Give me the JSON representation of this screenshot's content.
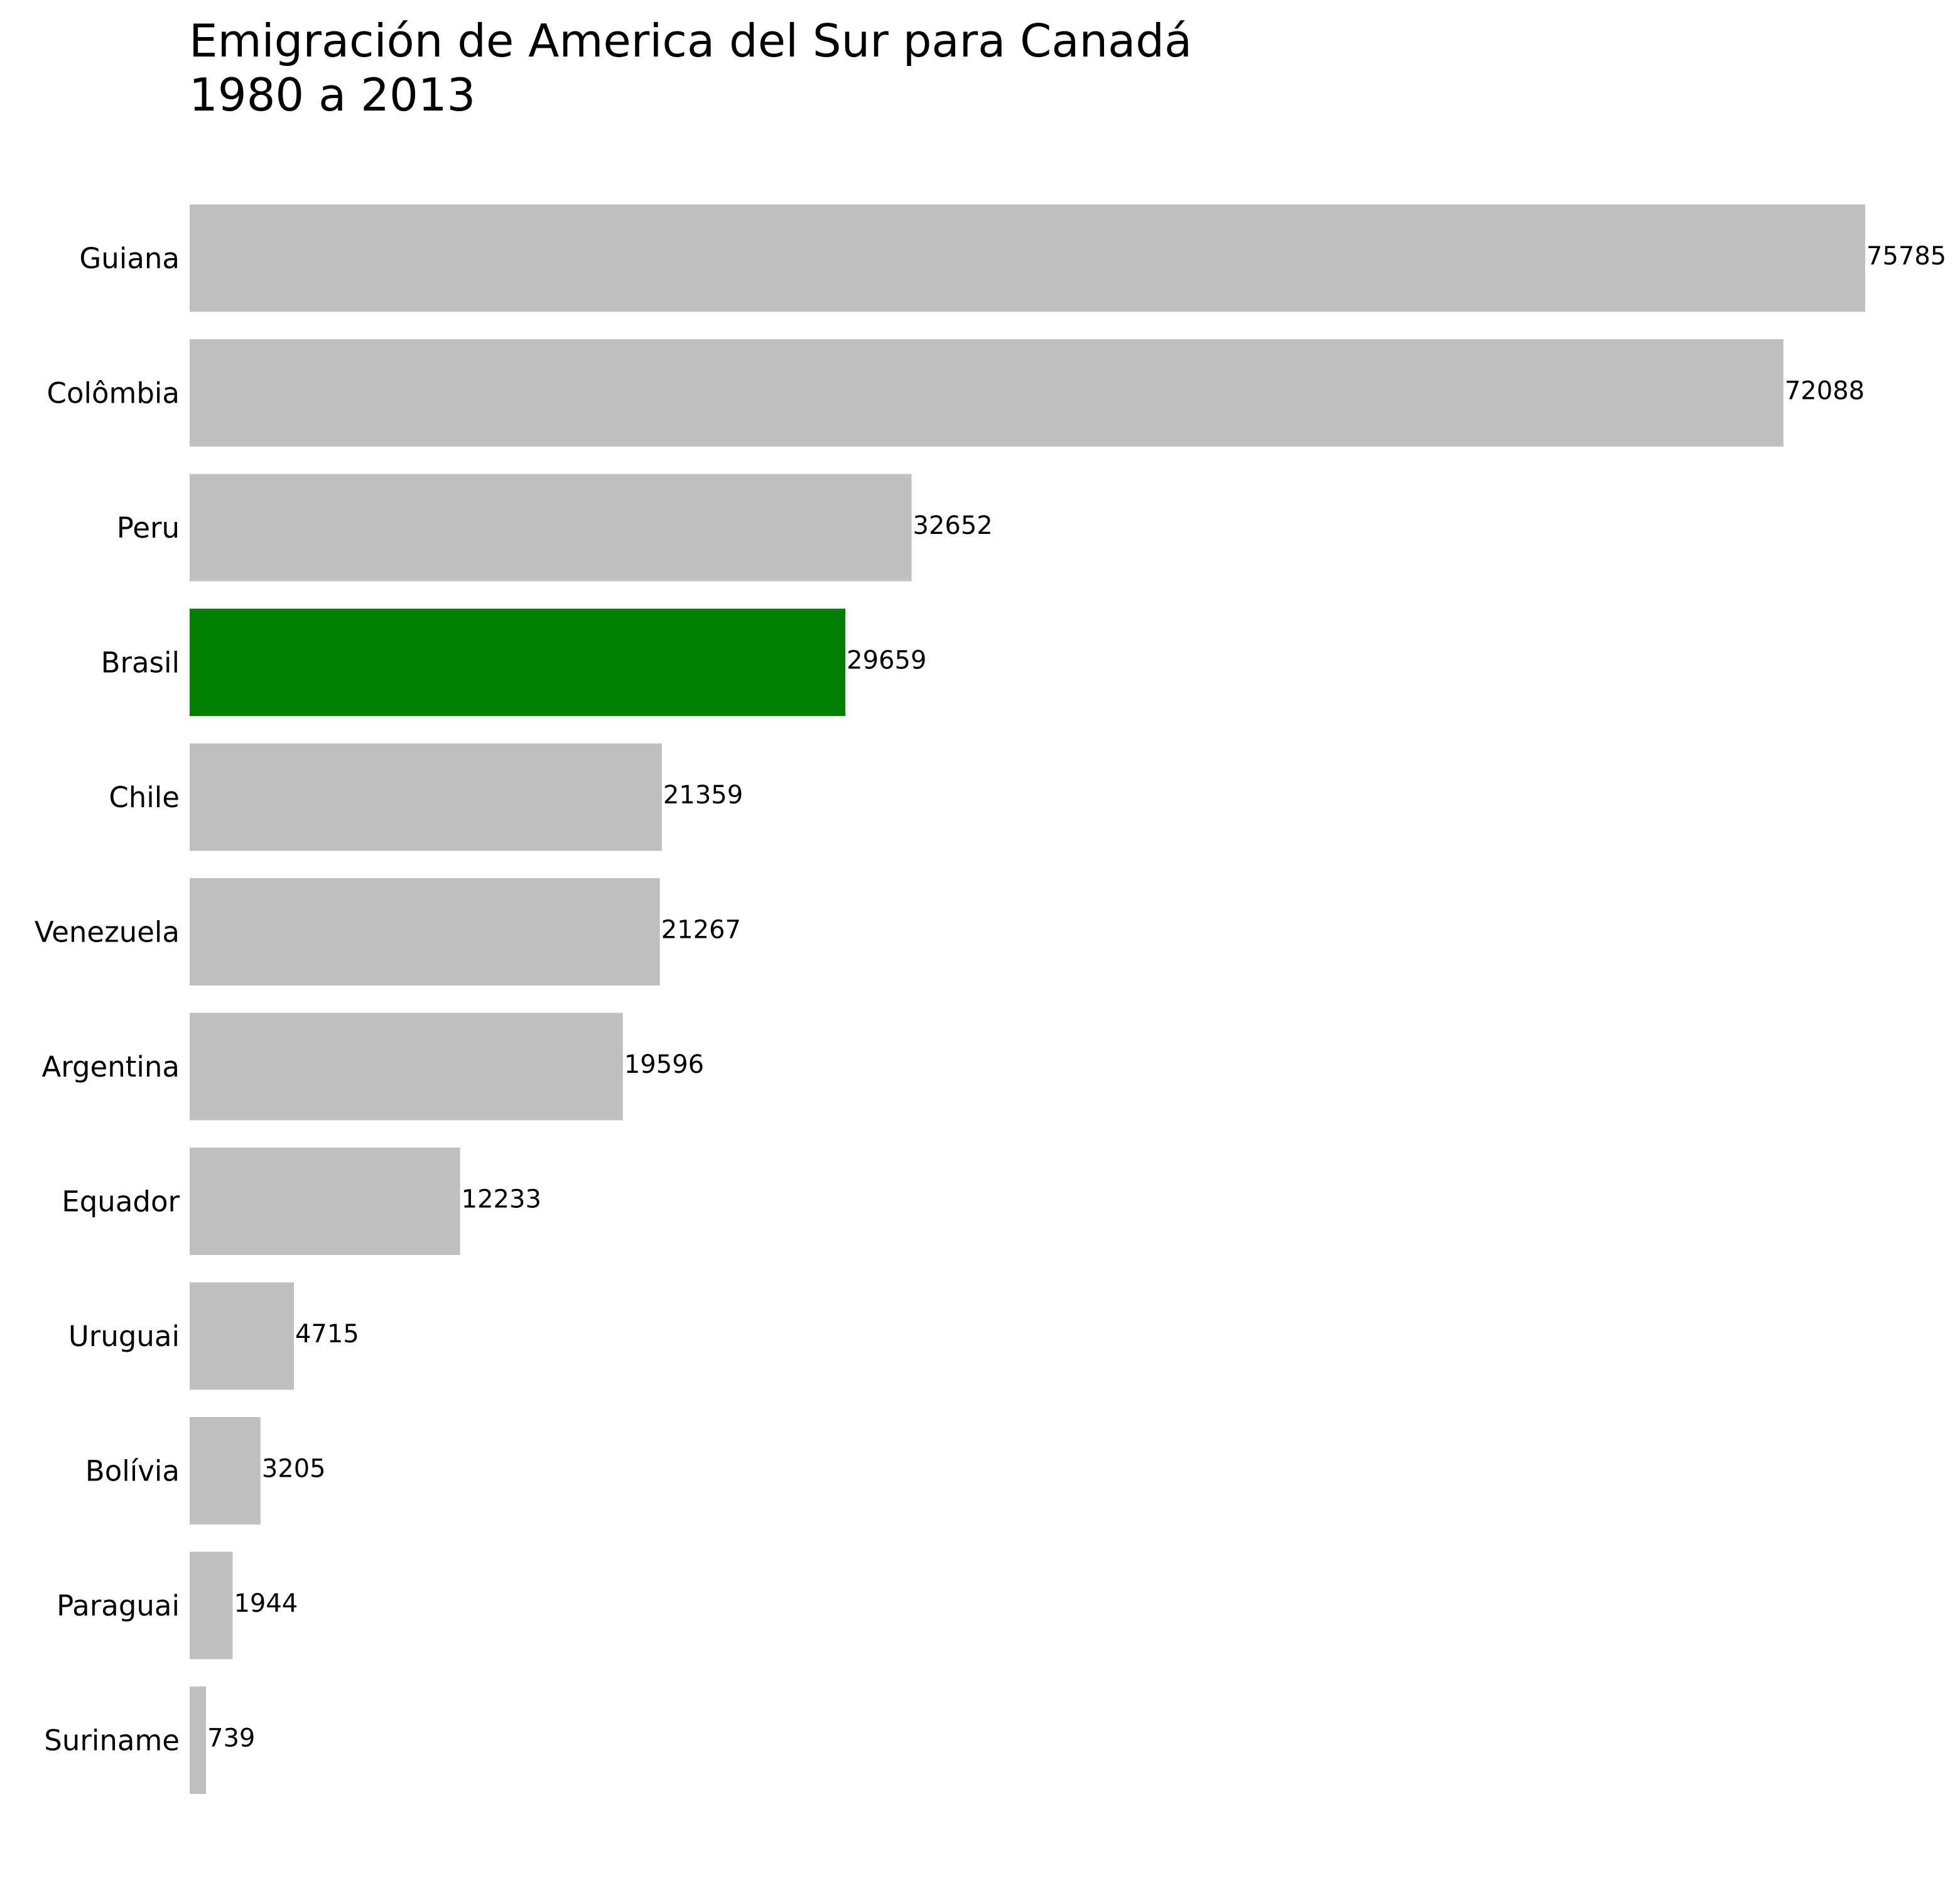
{
  "chart_data": {
    "type": "bar",
    "orientation": "horizontal",
    "title": "Emigración de America del Sur para Canadá\n1980 a 2013",
    "xlabel": "",
    "ylabel": "",
    "categories": [
      "Guiana",
      "Colômbia",
      "Peru",
      "Brasil",
      "Chile",
      "Venezuela",
      "Argentina",
      "Equador",
      "Uruguai",
      "Bolívia",
      "Paraguai",
      "Suriname"
    ],
    "values": [
      75785,
      72088,
      32652,
      29659,
      21359,
      21267,
      19596,
      12233,
      4715,
      3205,
      1944,
      739
    ],
    "value_labels": [
      "75785",
      "72088",
      "32652",
      "29659",
      "21359",
      "21267",
      "19596",
      "12233",
      "4715",
      "3205",
      "1944",
      "739"
    ],
    "highlight": "Brasil",
    "colors": {
      "default": "#c0c0c0",
      "highlight": "#008000"
    },
    "grid": false,
    "legend": "none"
  }
}
